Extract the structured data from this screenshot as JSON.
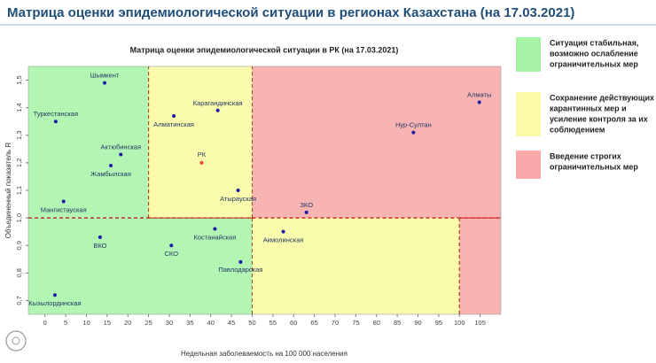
{
  "header": {
    "title": "Матрица оценки эпидемиологической ситуации в регионах Казахстана (на 17.03.2021)"
  },
  "chart_data": {
    "type": "scatter",
    "title": "Матрица оценки эпидемиологической ситуации в РК (на 17.03.2021)",
    "x_label": "Недельная заболеваемость на 100 000 населения",
    "y_label": "Объединенный показатель R",
    "xlim": [
      -4,
      110
    ],
    "ylim": [
      0.65,
      1.55
    ],
    "xticks": [
      0,
      5,
      10,
      15,
      20,
      25,
      30,
      35,
      40,
      45,
      50,
      55,
      60,
      65,
      70,
      75,
      80,
      85,
      90,
      95,
      100,
      105
    ],
    "yticks": [
      {
        "value": 0.7,
        "label": "0,7"
      },
      {
        "value": 0.8,
        "label": "0,8"
      },
      {
        "value": 0.9,
        "label": "0,9"
      },
      {
        "value": 1.0,
        "label": "1,0"
      },
      {
        "value": 1.1,
        "label": "1,1"
      },
      {
        "value": 1.2,
        "label": "1,2"
      },
      {
        "value": 1.3,
        "label": "1,3"
      },
      {
        "value": 1.4,
        "label": "1,4"
      },
      {
        "value": 1.5,
        "label": "1,5"
      }
    ],
    "zones": [
      {
        "xlim": [
          -4,
          25
        ],
        "ylim": [
          1.0,
          1.55
        ],
        "color": "#b3f5b3"
      },
      {
        "xlim": [
          25,
          50
        ],
        "ylim": [
          1.0,
          1.55
        ],
        "color": "#fbfbad"
      },
      {
        "xlim": [
          50,
          110
        ],
        "ylim": [
          1.0,
          1.55
        ],
        "color": "#f8b3b3"
      },
      {
        "xlim": [
          -4,
          50
        ],
        "ylim": [
          0.65,
          1.0
        ],
        "color": "#b3f5b3"
      },
      {
        "xlim": [
          50,
          100
        ],
        "ylim": [
          0.65,
          1.0
        ],
        "color": "#fbfbad"
      },
      {
        "xlim": [
          100,
          110
        ],
        "ylim": [
          0.65,
          1.0
        ],
        "color": "#f8b3b3"
      }
    ],
    "point_color": "#1a1aa6",
    "highlight_color": "#e2502a",
    "points": [
      {
        "label": "Шымкент",
        "x": 14.4,
        "y": 1.49
      },
      {
        "label": "Туркестанская",
        "x": 2.6,
        "y": 1.35
      },
      {
        "label": "Актюбинская",
        "x": 18.3,
        "y": 1.23
      },
      {
        "label": "Жамбылская",
        "x": 15.9,
        "y": 1.19
      },
      {
        "label": "Мангистауская",
        "x": 4.5,
        "y": 1.06
      },
      {
        "label": "Алматинская",
        "x": 31.1,
        "y": 1.37
      },
      {
        "label": "Карагандинская",
        "x": 41.7,
        "y": 1.39
      },
      {
        "label": "РК",
        "x": 37.8,
        "y": 1.2,
        "highlight": true
      },
      {
        "label": "Атырауская",
        "x": 46.6,
        "y": 1.1
      },
      {
        "label": "Алматы",
        "x": 104.8,
        "y": 1.42
      },
      {
        "label": "Нур-Султан",
        "x": 88.9,
        "y": 1.31
      },
      {
        "label": "ЗКО",
        "x": 63.1,
        "y": 1.02
      },
      {
        "label": "ВКО",
        "x": 13.3,
        "y": 0.93
      },
      {
        "label": "СКО",
        "x": 30.5,
        "y": 0.9
      },
      {
        "label": "Костанайская",
        "x": 41.0,
        "y": 0.96
      },
      {
        "label": "Павлодарская",
        "x": 47.2,
        "y": 0.84
      },
      {
        "label": "Акмолинская",
        "x": 57.5,
        "y": 0.95
      },
      {
        "label": "Кызылординская",
        "x": 2.4,
        "y": 0.72
      }
    ],
    "legend": [
      {
        "color": "#a6f2a6",
        "lines": [
          "Ситуация стабильная,",
          "возможно ослабление",
          "ограничительных мер"
        ]
      },
      {
        "color": "#fbfba6",
        "lines": [
          "Сохранение действующих",
          "карантинных мер и",
          "усиление контроля за их",
          "соблюдением"
        ]
      },
      {
        "color": "#f8a9a9",
        "lines": [
          "Введение строгих",
          "ограничительных мер"
        ]
      }
    ]
  }
}
